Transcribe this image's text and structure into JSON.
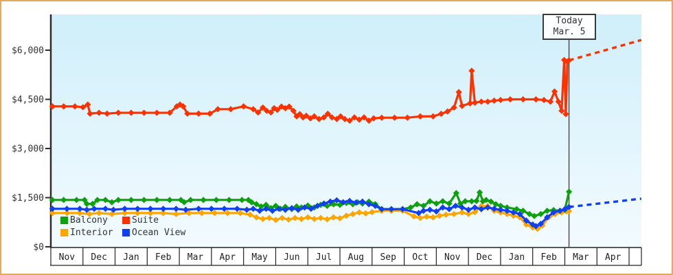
{
  "frame": {
    "border_color": "#eaa85c",
    "background": "#ffffff"
  },
  "today": {
    "line1": "Today",
    "line2": "Mar. 5",
    "t": 16.13
  },
  "legend": {
    "items": [
      {
        "label": "Balcony",
        "color": "#0da10d"
      },
      {
        "label": "Suite",
        "color": "#fe3200"
      },
      {
        "label": "Interior",
        "color": "#ffa500"
      },
      {
        "label": "Ocean View",
        "color": "#1240f0"
      }
    ]
  },
  "chart_data": {
    "type": "line",
    "title": "",
    "xlabel": "",
    "ylabel": "",
    "ylim": [
      0,
      7090
    ],
    "grid": false,
    "legend_position": "bottom-left-inside",
    "x_axis_months": [
      "Nov",
      "Dec",
      "Jan",
      "Feb",
      "Mar",
      "Apr",
      "May",
      "Jun",
      "Jul",
      "Aug",
      "Sep",
      "Oct",
      "Nov",
      "Dec",
      "Jan",
      "Feb",
      "Mar",
      "Apr"
    ],
    "y_ticks": [
      {
        "value": 0,
        "label": "$0"
      },
      {
        "value": 1500,
        "label": "$1,500"
      },
      {
        "value": 3000,
        "label": "$3,000"
      },
      {
        "value": 4500,
        "label": "$4,500"
      },
      {
        "value": 6000,
        "label": "$6,000"
      }
    ],
    "today_annotation": {
      "label": [
        "Today",
        "Mar. 5"
      ],
      "t_months_from_start": 16.13
    },
    "series": [
      {
        "name": "Interior",
        "color": "#ffa500",
        "points": [
          [
            0.05,
            1030
          ],
          [
            0.5,
            1030
          ],
          [
            0.9,
            1030
          ],
          [
            1.2,
            1000
          ],
          [
            1.5,
            1030
          ],
          [
            1.9,
            1000
          ],
          [
            2.3,
            1030
          ],
          [
            2.7,
            1030
          ],
          [
            3.1,
            1030
          ],
          [
            3.5,
            1030
          ],
          [
            3.9,
            1000
          ],
          [
            4.3,
            1030
          ],
          [
            4.7,
            1030
          ],
          [
            5.1,
            1030
          ],
          [
            5.5,
            1030
          ],
          [
            5.9,
            1030
          ],
          [
            6.2,
            980
          ],
          [
            6.4,
            900
          ],
          [
            6.6,
            850
          ],
          [
            6.8,
            880
          ],
          [
            7.0,
            820
          ],
          [
            7.2,
            880
          ],
          [
            7.4,
            830
          ],
          [
            7.6,
            880
          ],
          [
            7.8,
            850
          ],
          [
            8.0,
            900
          ],
          [
            8.2,
            850
          ],
          [
            8.4,
            880
          ],
          [
            8.6,
            840
          ],
          [
            8.8,
            900
          ],
          [
            9.0,
            870
          ],
          [
            9.2,
            950
          ],
          [
            9.4,
            1000
          ],
          [
            9.6,
            1050
          ],
          [
            9.8,
            1020
          ],
          [
            10.0,
            1060
          ],
          [
            10.3,
            1100
          ],
          [
            10.6,
            1100
          ],
          [
            10.95,
            1100
          ],
          [
            11.3,
            930
          ],
          [
            11.5,
            880
          ],
          [
            11.7,
            920
          ],
          [
            11.9,
            900
          ],
          [
            12.1,
            950
          ],
          [
            12.3,
            980
          ],
          [
            12.55,
            1000
          ],
          [
            12.8,
            1050
          ],
          [
            13.0,
            1000
          ],
          [
            13.2,
            1060
          ],
          [
            13.4,
            1240
          ],
          [
            13.6,
            1240
          ],
          [
            13.8,
            1100
          ],
          [
            14.0,
            1050
          ],
          [
            14.2,
            1000
          ],
          [
            14.4,
            950
          ],
          [
            14.6,
            900
          ],
          [
            14.8,
            680
          ],
          [
            15.0,
            590
          ],
          [
            15.15,
            550
          ],
          [
            15.3,
            650
          ],
          [
            15.5,
            900
          ],
          [
            15.7,
            1000
          ],
          [
            15.9,
            1050
          ],
          [
            16.05,
            1080
          ],
          [
            16.13,
            1090
          ]
        ],
        "projection": null
      },
      {
        "name": "Balcony",
        "color": "#0da10d",
        "points": [
          [
            0.05,
            1430
          ],
          [
            0.4,
            1430
          ],
          [
            0.8,
            1430
          ],
          [
            1.05,
            1430
          ],
          [
            1.12,
            1310
          ],
          [
            1.3,
            1310
          ],
          [
            1.45,
            1430
          ],
          [
            1.7,
            1430
          ],
          [
            1.9,
            1360
          ],
          [
            2.1,
            1430
          ],
          [
            2.5,
            1430
          ],
          [
            2.9,
            1430
          ],
          [
            3.3,
            1430
          ],
          [
            3.7,
            1430
          ],
          [
            4.05,
            1430
          ],
          [
            4.15,
            1360
          ],
          [
            4.35,
            1430
          ],
          [
            4.75,
            1430
          ],
          [
            5.15,
            1430
          ],
          [
            5.55,
            1430
          ],
          [
            5.95,
            1430
          ],
          [
            6.15,
            1430
          ],
          [
            6.25,
            1360
          ],
          [
            6.4,
            1300
          ],
          [
            6.55,
            1230
          ],
          [
            6.7,
            1280
          ],
          [
            6.85,
            1180
          ],
          [
            7.0,
            1250
          ],
          [
            7.15,
            1160
          ],
          [
            7.3,
            1220
          ],
          [
            7.5,
            1150
          ],
          [
            7.65,
            1230
          ],
          [
            7.8,
            1200
          ],
          [
            8.0,
            1260
          ],
          [
            8.2,
            1200
          ],
          [
            8.4,
            1280
          ],
          [
            8.6,
            1250
          ],
          [
            8.8,
            1300
          ],
          [
            9.0,
            1280
          ],
          [
            9.2,
            1340
          ],
          [
            9.4,
            1300
          ],
          [
            9.55,
            1360
          ],
          [
            9.7,
            1320
          ],
          [
            9.9,
            1380
          ],
          [
            10.1,
            1300
          ],
          [
            10.3,
            1150
          ],
          [
            10.6,
            1150
          ],
          [
            10.95,
            1150
          ],
          [
            11.2,
            1200
          ],
          [
            11.4,
            1300
          ],
          [
            11.6,
            1250
          ],
          [
            11.8,
            1390
          ],
          [
            12.0,
            1320
          ],
          [
            12.2,
            1390
          ],
          [
            12.4,
            1320
          ],
          [
            12.62,
            1640
          ],
          [
            12.75,
            1320
          ],
          [
            12.9,
            1390
          ],
          [
            13.1,
            1390
          ],
          [
            13.25,
            1400
          ],
          [
            13.35,
            1660
          ],
          [
            13.45,
            1390
          ],
          [
            13.55,
            1430
          ],
          [
            13.7,
            1380
          ],
          [
            13.85,
            1300
          ],
          [
            14.0,
            1250
          ],
          [
            14.2,
            1200
          ],
          [
            14.5,
            1150
          ],
          [
            14.7,
            1100
          ],
          [
            14.9,
            1000
          ],
          [
            15.05,
            940
          ],
          [
            15.25,
            1000
          ],
          [
            15.45,
            1100
          ],
          [
            15.65,
            1120
          ],
          [
            15.85,
            1100
          ],
          [
            16.0,
            1130
          ],
          [
            16.13,
            1680
          ]
        ],
        "projection": null
      },
      {
        "name": "Ocean View",
        "color": "#1240f0",
        "points": [
          [
            0.05,
            1160
          ],
          [
            0.5,
            1160
          ],
          [
            0.9,
            1160
          ],
          [
            1.12,
            1130
          ],
          [
            1.35,
            1160
          ],
          [
            1.7,
            1160
          ],
          [
            1.95,
            1130
          ],
          [
            2.3,
            1160
          ],
          [
            2.7,
            1160
          ],
          [
            3.1,
            1160
          ],
          [
            3.5,
            1160
          ],
          [
            3.9,
            1160
          ],
          [
            4.2,
            1130
          ],
          [
            4.6,
            1160
          ],
          [
            5.0,
            1160
          ],
          [
            5.4,
            1160
          ],
          [
            5.8,
            1160
          ],
          [
            6.1,
            1130
          ],
          [
            6.3,
            1160
          ],
          [
            6.5,
            1100
          ],
          [
            6.7,
            1160
          ],
          [
            6.9,
            1100
          ],
          [
            7.1,
            1160
          ],
          [
            7.3,
            1130
          ],
          [
            7.5,
            1180
          ],
          [
            7.7,
            1130
          ],
          [
            7.9,
            1200
          ],
          [
            8.1,
            1160
          ],
          [
            8.3,
            1250
          ],
          [
            8.5,
            1320
          ],
          [
            8.7,
            1380
          ],
          [
            8.9,
            1420
          ],
          [
            9.1,
            1360
          ],
          [
            9.3,
            1400
          ],
          [
            9.5,
            1350
          ],
          [
            9.7,
            1380
          ],
          [
            9.9,
            1300
          ],
          [
            10.1,
            1250
          ],
          [
            10.3,
            1150
          ],
          [
            10.6,
            1150
          ],
          [
            10.95,
            1150
          ],
          [
            11.45,
            1030
          ],
          [
            11.6,
            1100
          ],
          [
            11.8,
            1130
          ],
          [
            12.0,
            1080
          ],
          [
            12.2,
            1200
          ],
          [
            12.4,
            1150
          ],
          [
            12.6,
            1250
          ],
          [
            12.8,
            1200
          ],
          [
            13.0,
            1130
          ],
          [
            13.2,
            1200
          ],
          [
            13.4,
            1150
          ],
          [
            13.6,
            1200
          ],
          [
            13.8,
            1160
          ],
          [
            14.0,
            1130
          ],
          [
            14.2,
            1100
          ],
          [
            14.4,
            1050
          ],
          [
            14.6,
            1000
          ],
          [
            14.8,
            800
          ],
          [
            15.0,
            680
          ],
          [
            15.1,
            630
          ],
          [
            15.25,
            700
          ],
          [
            15.45,
            900
          ],
          [
            15.65,
            1050
          ],
          [
            15.85,
            1100
          ],
          [
            16.0,
            1150
          ],
          [
            16.13,
            1215
          ]
        ],
        "projection": [
          [
            16.13,
            1215
          ],
          [
            18.38,
            1470
          ]
        ]
      },
      {
        "name": "Suite",
        "color": "#fe3200",
        "points": [
          [
            0.05,
            4285
          ],
          [
            0.4,
            4285
          ],
          [
            0.75,
            4285
          ],
          [
            1.0,
            4260
          ],
          [
            1.15,
            4340
          ],
          [
            1.22,
            4065
          ],
          [
            1.5,
            4090
          ],
          [
            1.75,
            4065
          ],
          [
            2.1,
            4090
          ],
          [
            2.5,
            4090
          ],
          [
            2.9,
            4090
          ],
          [
            3.3,
            4090
          ],
          [
            3.7,
            4090
          ],
          [
            3.92,
            4285
          ],
          [
            4.02,
            4340
          ],
          [
            4.12,
            4285
          ],
          [
            4.25,
            4065
          ],
          [
            4.6,
            4065
          ],
          [
            4.95,
            4065
          ],
          [
            5.2,
            4200
          ],
          [
            5.6,
            4200
          ],
          [
            6.0,
            4285
          ],
          [
            6.3,
            4200
          ],
          [
            6.45,
            4100
          ],
          [
            6.6,
            4250
          ],
          [
            6.72,
            4150
          ],
          [
            6.85,
            4100
          ],
          [
            6.95,
            4230
          ],
          [
            7.05,
            4180
          ],
          [
            7.18,
            4280
          ],
          [
            7.3,
            4230
          ],
          [
            7.42,
            4280
          ],
          [
            7.55,
            4150
          ],
          [
            7.65,
            3980
          ],
          [
            7.75,
            4050
          ],
          [
            7.85,
            3950
          ],
          [
            7.95,
            4000
          ],
          [
            8.08,
            3920
          ],
          [
            8.2,
            3980
          ],
          [
            8.35,
            3900
          ],
          [
            8.5,
            3950
          ],
          [
            8.62,
            4060
          ],
          [
            8.75,
            3950
          ],
          [
            8.9,
            3900
          ],
          [
            9.02,
            3980
          ],
          [
            9.15,
            3900
          ],
          [
            9.3,
            3850
          ],
          [
            9.45,
            3950
          ],
          [
            9.6,
            3880
          ],
          [
            9.75,
            3950
          ],
          [
            9.9,
            3850
          ],
          [
            10.05,
            3920
          ],
          [
            10.3,
            3940
          ],
          [
            10.7,
            3940
          ],
          [
            11.1,
            3940
          ],
          [
            11.5,
            3980
          ],
          [
            11.9,
            3980
          ],
          [
            12.15,
            4060
          ],
          [
            12.35,
            4130
          ],
          [
            12.55,
            4250
          ],
          [
            12.7,
            4720
          ],
          [
            12.8,
            4300
          ],
          [
            13.05,
            4380
          ],
          [
            13.1,
            5370
          ],
          [
            13.2,
            4400
          ],
          [
            13.4,
            4430
          ],
          [
            13.6,
            4430
          ],
          [
            13.8,
            4460
          ],
          [
            14.0,
            4480
          ],
          [
            14.3,
            4500
          ],
          [
            14.7,
            4500
          ],
          [
            15.1,
            4500
          ],
          [
            15.35,
            4480
          ],
          [
            15.55,
            4430
          ],
          [
            15.68,
            4740
          ],
          [
            15.8,
            4430
          ],
          [
            15.9,
            4150
          ],
          [
            15.98,
            5700
          ],
          [
            16.03,
            4050
          ],
          [
            16.08,
            5650
          ],
          [
            16.13,
            5690
          ]
        ],
        "projection": [
          [
            16.13,
            5690
          ],
          [
            18.38,
            6310
          ]
        ]
      }
    ]
  }
}
